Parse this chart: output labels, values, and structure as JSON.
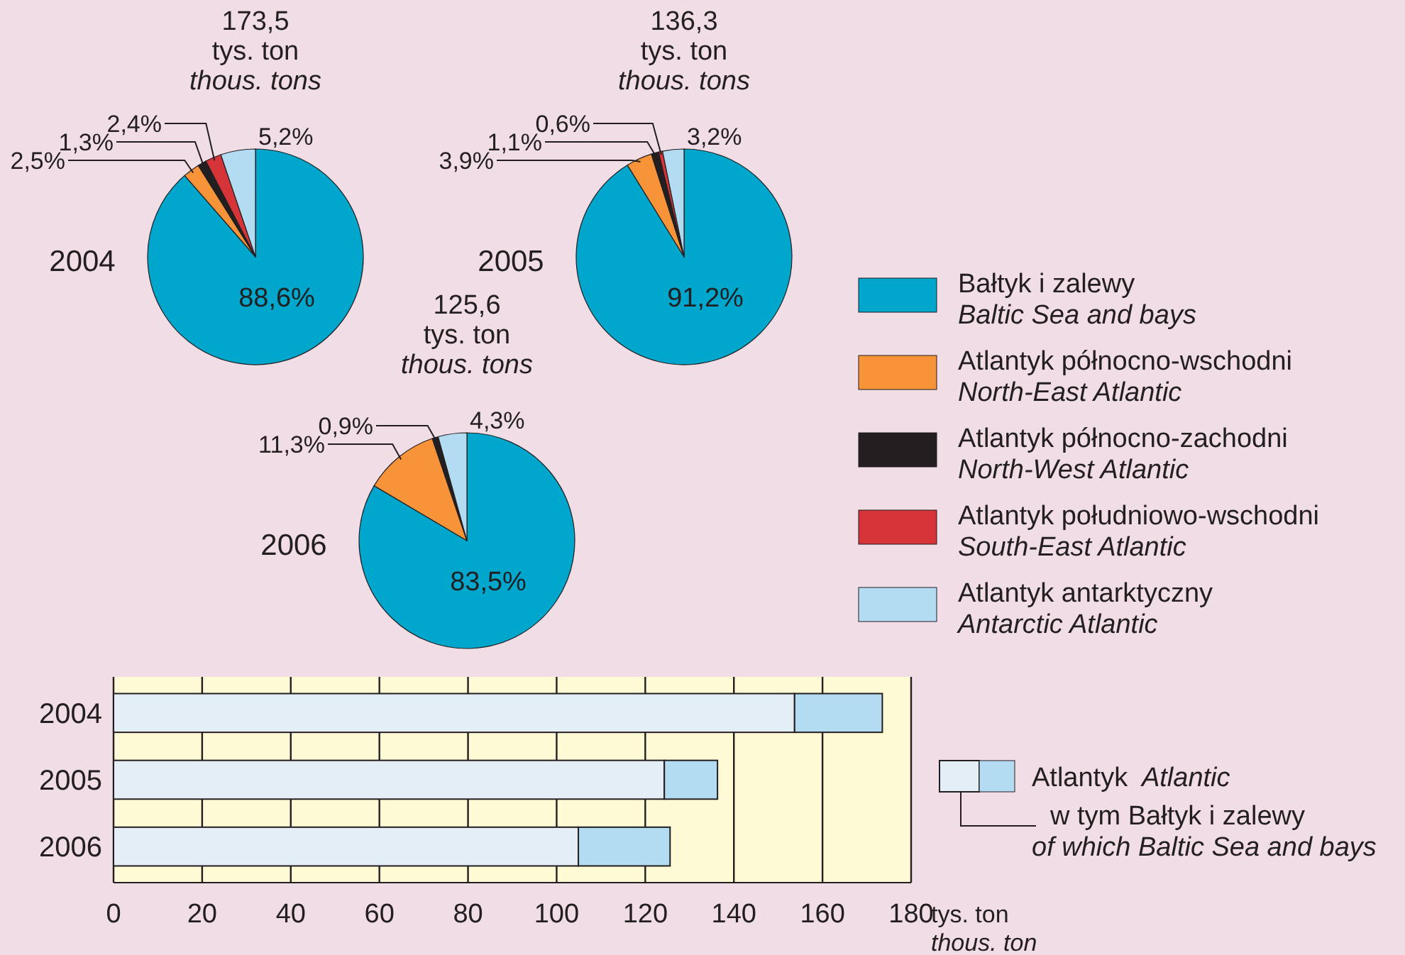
{
  "chart_data": [
    {
      "type": "pie",
      "title": "2004",
      "annotations": [
        "173,5\ntys. ton\nthous. tons"
      ],
      "legend": "right",
      "categories": [
        "Bałtyk i zalewy\nBaltic Sea and bays",
        "Atlantyk północno-wschodni\nNorth-East Atlantic",
        "Atlantyk północno-zachodni\nNorth-West Atlantic",
        "Atlantyk południowo-wschodni\nSouth-East Atlantic",
        "Atlantyk antarktyczny\nAntarctic Atlantic"
      ],
      "values": [
        88.6,
        2.5,
        1.3,
        2.4,
        5.2
      ],
      "value_labels": [
        "88,6%",
        "2,5%",
        "1,3%",
        "2,4%",
        "5,2%"
      ],
      "colors": [
        "#00a6cc",
        "#f7943a",
        "#231f20",
        "#d7343a",
        "#b3dbf2"
      ]
    },
    {
      "type": "pie",
      "title": "2005",
      "annotations": [
        "136,3\ntys. ton\nthous. tons"
      ],
      "values": [
        91.2,
        3.9,
        1.1,
        0.6,
        3.2
      ],
      "value_labels": [
        "91,2%",
        "3,9%",
        "1,1%",
        "0,6%",
        "3,2%"
      ],
      "colors": [
        "#00a6cc",
        "#f7943a",
        "#231f20",
        "#d7343a",
        "#b3dbf2"
      ]
    },
    {
      "type": "pie",
      "title": "2006",
      "annotations": [
        "125,6\ntys. ton\nthous. tons"
      ],
      "values": [
        83.5,
        11.3,
        0.9,
        null,
        4.3
      ],
      "value_labels": [
        "83,5%",
        "11,3%",
        "0,9%",
        null,
        "4,3%"
      ],
      "colors": [
        "#00a6cc",
        "#f7943a",
        "#231f20",
        null,
        "#b3dbf2"
      ]
    },
    {
      "type": "bar",
      "orientation": "horizontal",
      "stacked": true,
      "grid": "x",
      "legend": "right",
      "xlabel": "tys. ton\nthous. ton",
      "categories": [
        "2004",
        "2005",
        "2006"
      ],
      "xlim": [
        0,
        180
      ],
      "xticks": [
        0,
        20,
        40,
        60,
        80,
        100,
        120,
        140,
        160,
        180
      ],
      "series": [
        {
          "name": "w tym Bałtyk i zalewy\nof which Baltic Sea and bays",
          "color": "#e4eef7",
          "values": [
            153.7,
            124.3,
            104.9
          ]
        },
        {
          "name": "Atlantyk\nAtlantic",
          "color": "#b3dbf2",
          "values": [
            19.8,
            12.0,
            20.7
          ]
        }
      ]
    }
  ]
}
